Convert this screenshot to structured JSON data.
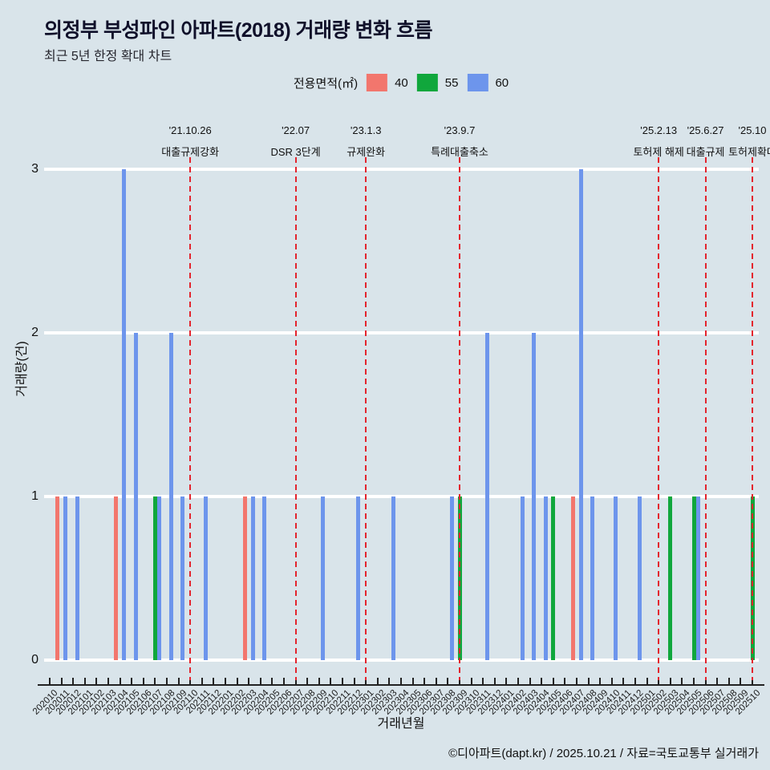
{
  "title": "의정부 부성파인 아파트(2018) 거래량 변화 흐름",
  "subtitle": "최근 5년 한정 확대 차트",
  "legend": {
    "label": "전용면적(㎡)",
    "items": [
      {
        "label": "40",
        "color": "#f2766d"
      },
      {
        "label": "55",
        "color": "#10a73c"
      },
      {
        "label": "60",
        "color": "#6d95ec"
      }
    ]
  },
  "footer": "©디아파트(dapt.kr) / 2025.10.21 / 자료=국토교통부 실거래가",
  "colors": {
    "background": "#d9e4ea",
    "gridline": "#ffffff",
    "event_line": "#e3242d",
    "axis": "#222222",
    "text": "#111111"
  },
  "chart_data": {
    "type": "bar",
    "title": "의정부 부성파인 아파트(2018) 거래량 변화 흐름",
    "subtitle": "최근 5년 한정 확대 차트",
    "xlabel": "거래년월",
    "ylabel": "거래량(건)",
    "ylim": [
      0,
      3
    ],
    "yticks": [
      0,
      1,
      2,
      3
    ],
    "grid": true,
    "legend_position": "top",
    "legend_title": "전용면적(㎡)",
    "categories": [
      "202010",
      "202011",
      "202012",
      "202101",
      "202102",
      "202103",
      "202104",
      "202105",
      "202106",
      "202107",
      "202108",
      "202109",
      "202110",
      "202111",
      "202112",
      "202201",
      "202202",
      "202203",
      "202204",
      "202205",
      "202206",
      "202207",
      "202208",
      "202209",
      "202210",
      "202211",
      "202212",
      "202301",
      "202302",
      "202303",
      "202304",
      "202305",
      "202306",
      "202307",
      "202308",
      "202309",
      "202310",
      "202311",
      "202312",
      "202401",
      "202402",
      "202403",
      "202404",
      "202405",
      "202406",
      "202407",
      "202408",
      "202409",
      "202410",
      "202411",
      "202412",
      "202501",
      "202502",
      "202503",
      "202504",
      "202505",
      "202506",
      "202507",
      "202508",
      "202509",
      "202510"
    ],
    "series": [
      {
        "name": "40",
        "color": "#f2766d",
        "values": [
          0,
          1,
          0,
          0,
          0,
          0,
          1,
          0,
          0,
          0,
          0,
          0,
          0,
          0,
          0,
          0,
          0,
          1,
          0,
          0,
          0,
          0,
          0,
          0,
          0,
          0,
          0,
          0,
          0,
          0,
          0,
          0,
          0,
          0,
          0,
          0,
          0,
          0,
          0,
          0,
          0,
          0,
          0,
          0,
          0,
          1,
          0,
          0,
          0,
          0,
          0,
          0,
          0,
          0,
          0,
          0,
          0,
          0,
          0,
          0,
          0
        ]
      },
      {
        "name": "55",
        "color": "#10a73c",
        "values": [
          0,
          0,
          0,
          0,
          0,
          0,
          0,
          0,
          0,
          1,
          0,
          0,
          0,
          0,
          0,
          0,
          0,
          0,
          0,
          0,
          0,
          0,
          0,
          0,
          0,
          0,
          0,
          0,
          0,
          0,
          0,
          0,
          0,
          0,
          0,
          1,
          0,
          0,
          0,
          0,
          0,
          0,
          0,
          1,
          0,
          0,
          0,
          0,
          0,
          0,
          0,
          0,
          0,
          1,
          0,
          1,
          0,
          0,
          0,
          0,
          1
        ]
      },
      {
        "name": "60",
        "color": "#6d95ec",
        "values": [
          0,
          1,
          1,
          0,
          0,
          0,
          3,
          2,
          0,
          1,
          2,
          1,
          0,
          1,
          0,
          0,
          0,
          1,
          1,
          0,
          0,
          0,
          0,
          1,
          0,
          0,
          1,
          0,
          0,
          1,
          0,
          0,
          0,
          0,
          1,
          0,
          0,
          2,
          0,
          0,
          1,
          2,
          1,
          0,
          0,
          3,
          1,
          0,
          1,
          0,
          1,
          0,
          0,
          0,
          0,
          1,
          0,
          0,
          0,
          0,
          0
        ]
      }
    ],
    "event_lines": [
      {
        "month": "202110",
        "date": "'21.10.26",
        "label": "대출규제강화"
      },
      {
        "month": "202207",
        "date": "'22.07",
        "label": "DSR 3단계"
      },
      {
        "month": "202301",
        "date": "'23.1.3",
        "label": "규제완화"
      },
      {
        "month": "202309",
        "date": "'23.9.7",
        "label": "특례대출축소"
      },
      {
        "month": "202502",
        "date": "'25.2.13",
        "label": "토허제 해제"
      },
      {
        "month": "202506",
        "date": "'25.6.27",
        "label": "대출규제"
      },
      {
        "month": "202510",
        "date": "'25.10",
        "label": "토허제확대"
      }
    ]
  }
}
